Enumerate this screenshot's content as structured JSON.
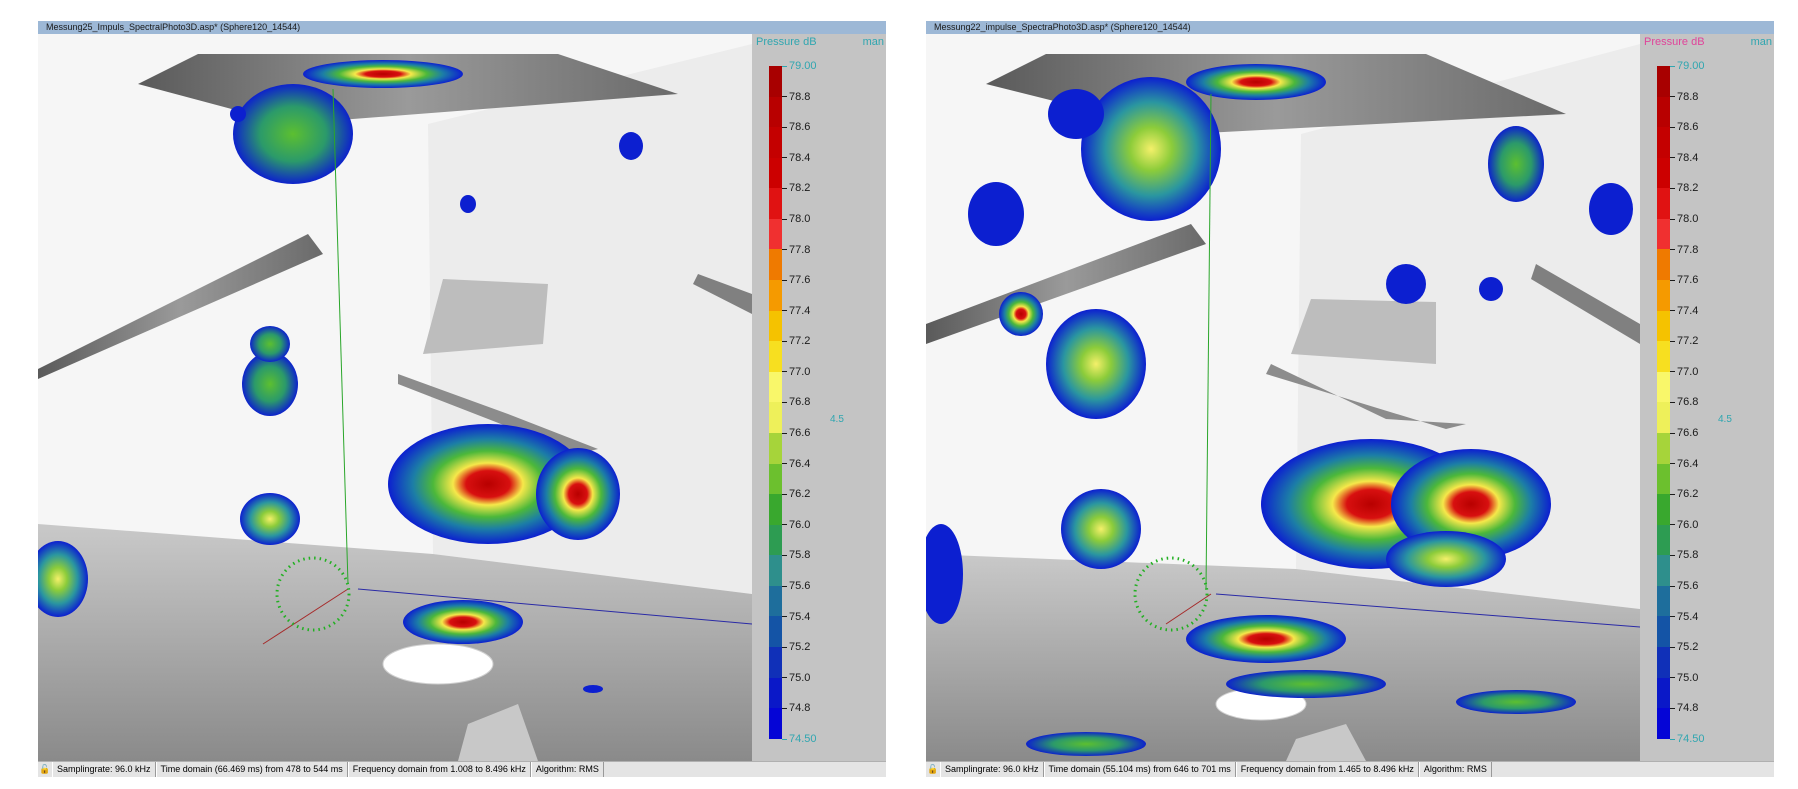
{
  "panels": [
    {
      "title": "Messung25_Impuls_SpectralPhoto3D.asp* (Sphere120_14544)",
      "scale_label": "Pressure dB",
      "scale_label_color": "#30a6b0",
      "scale_mode": "man",
      "scale_max": "79.00",
      "scale_min": "74.50",
      "midpoint_value": "4.5",
      "status": {
        "samplingrate": "Samplingrate: 96.0 kHz",
        "time_domain": "Time domain (66.469 ms) from 478 to 544 ms",
        "frequency_domain": "Frequency domain from 1.008 to 8.496 kHz",
        "algorithm": "Algorithm: RMS"
      }
    },
    {
      "title": "Messung22_impulse_SpectraPhoto3D.asp* (Sphere120_14544)",
      "scale_label": "Pressure dB",
      "scale_label_color": "#e0449a",
      "scale_mode": "man",
      "scale_max": "79.00",
      "scale_min": "74.50",
      "midpoint_value": "4.5",
      "status": {
        "samplingrate": "Samplingrate: 96.0 kHz",
        "time_domain": "Time domain (55.104 ms) from 646 to 701 ms",
        "frequency_domain": "Frequency domain from 1.465 to 8.496 kHz",
        "algorithm": "Algorithm: RMS"
      }
    }
  ],
  "scale_ticks": [
    "78.8",
    "78.6",
    "78.4",
    "78.2",
    "78.0",
    "77.8",
    "77.6",
    "77.4",
    "77.2",
    "77.0",
    "76.8",
    "76.6",
    "76.4",
    "76.2",
    "76.0",
    "75.8",
    "75.6",
    "75.4",
    "75.2",
    "75.0",
    "74.8"
  ],
  "colorbar_colors": [
    "#a80000",
    "#b80000",
    "#c40000",
    "#cc0000",
    "#e01212",
    "#f03030",
    "#ef7a00",
    "#f59a00",
    "#f5c200",
    "#f7df20",
    "#f9f76a",
    "#eef05a",
    "#a6d43a",
    "#6cc02e",
    "#39a82e",
    "#2d9c52",
    "#2e8f8c",
    "#1e6e9c",
    "#1454a6",
    "#1030b8",
    "#0a18c8",
    "#0505d6"
  ],
  "icons": {
    "status_lock": "lock-icon"
  }
}
